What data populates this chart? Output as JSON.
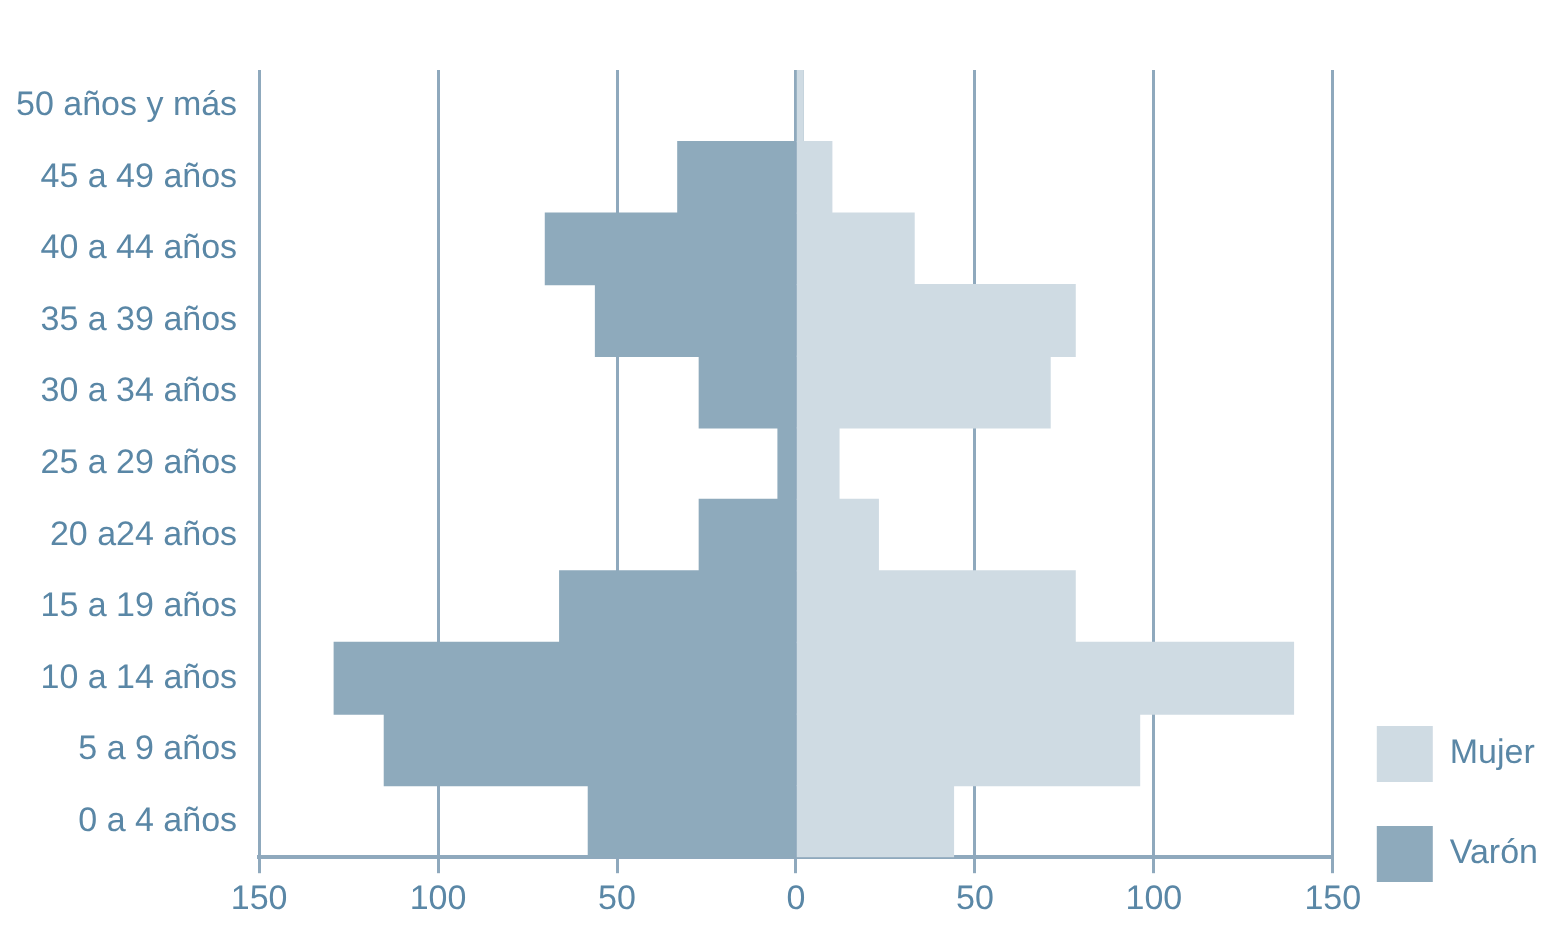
{
  "chart_data": {
    "type": "bar",
    "orientation": "horizontal",
    "stacked": true,
    "categories": [
      "50 años y más",
      "45 a 49 años",
      "40 a 44 años",
      "35 a 39 años",
      "30 a 34 años",
      "25 a 29 años",
      "20 a24 años",
      "15 a 19 años",
      "10 a 14 años",
      "5 a 9 años",
      "0 a 4 años"
    ],
    "series": [
      {
        "name": "Mujer",
        "color": "#cfdbe3",
        "values": [
          2,
          10,
          33,
          78,
          71,
          12,
          23,
          78,
          139,
          96,
          44
        ]
      },
      {
        "name": "Varón",
        "color": "#8eaabc",
        "values": [
          0,
          -33,
          -70,
          -56,
          -27,
          -5,
          -27,
          -66,
          -129,
          -115,
          -58
        ]
      }
    ],
    "xlim": [
      -150,
      150
    ],
    "xticks": [
      {
        "value": -150,
        "label": "150"
      },
      {
        "value": -100,
        "label": "100"
      },
      {
        "value": -50,
        "label": "50"
      },
      0,
      50,
      100,
      150
    ],
    "grid": "x",
    "legend": "right"
  }
}
